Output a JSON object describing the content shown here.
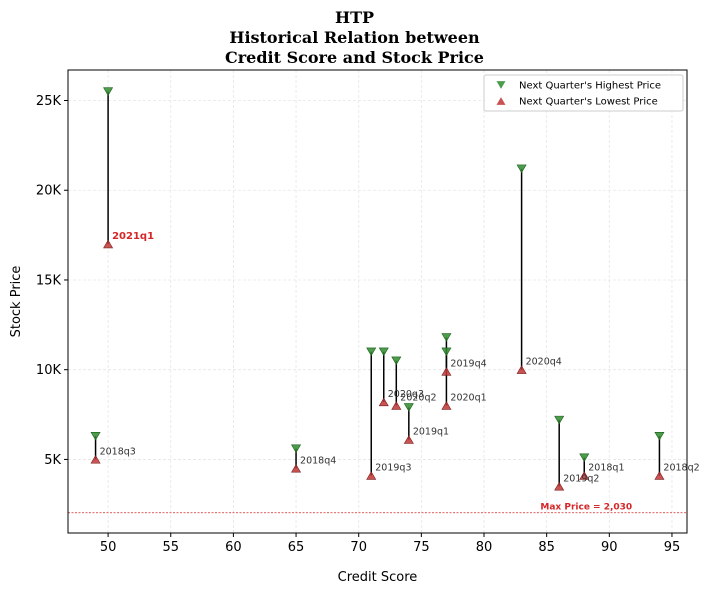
{
  "chart_data": {
    "type": "scatter",
    "title_lines": [
      "HTP",
      "Historical Relation between",
      "Credit Score and Stock Price"
    ],
    "xlabel": "Credit Score",
    "ylabel": "Stock Price",
    "xlim": [
      46.8,
      96.2
    ],
    "ylim": [
      900,
      26700
    ],
    "x_ticks": [
      50,
      55,
      60,
      65,
      70,
      75,
      80,
      85,
      90,
      95
    ],
    "y_ticks": [
      {
        "value": 5000,
        "label": "5K"
      },
      {
        "value": 10000,
        "label": "10K"
      },
      {
        "value": 15000,
        "label": "15K"
      },
      {
        "value": 20000,
        "label": "20K"
      },
      {
        "value": 25000,
        "label": "25K"
      }
    ],
    "grid": true,
    "legend_position": "top-right",
    "legend": [
      {
        "label": "Next Quarter's Highest Price",
        "marker": "triangle-down",
        "color": "#2e8b2e"
      },
      {
        "label": "Next Quarter's Lowest Price",
        "marker": "triangle-up",
        "color": "#c03535"
      }
    ],
    "colors": {
      "high": "#2e8b2e",
      "low": "#c03535",
      "highlight_label": "#d62728",
      "ref_line": "#d62728"
    },
    "series": [
      {
        "name": "Next Quarter's Highest Price",
        "points": [
          {
            "x": 50,
            "y": 25500
          },
          {
            "x": 49,
            "y": 6300
          },
          {
            "x": 65,
            "y": 5600
          },
          {
            "x": 71,
            "y": 11000
          },
          {
            "x": 72,
            "y": 11000
          },
          {
            "x": 73,
            "y": 10500
          },
          {
            "x": 74,
            "y": 7900
          },
          {
            "x": 77,
            "y": 11800
          },
          {
            "x": 77,
            "y": 11000
          },
          {
            "x": 83,
            "y": 21200
          },
          {
            "x": 86,
            "y": 7200
          },
          {
            "x": 88,
            "y": 5100
          },
          {
            "x": 94,
            "y": 6300
          }
        ]
      },
      {
        "name": "Next Quarter's Lowest Price",
        "points": [
          {
            "x": 50,
            "y": 17000
          },
          {
            "x": 49,
            "y": 5000
          },
          {
            "x": 65,
            "y": 4500
          },
          {
            "x": 71,
            "y": 4100
          },
          {
            "x": 72,
            "y": 8200
          },
          {
            "x": 73,
            "y": 8000
          },
          {
            "x": 74,
            "y": 6100
          },
          {
            "x": 77,
            "y": 9900
          },
          {
            "x": 77,
            "y": 8000
          },
          {
            "x": 83,
            "y": 10000
          },
          {
            "x": 86,
            "y": 3500
          },
          {
            "x": 88,
            "y": 4100
          },
          {
            "x": 94,
            "y": 4100
          }
        ]
      }
    ],
    "ranges": [
      {
        "x": 50,
        "high": 25500,
        "low": 17000,
        "label": "2021q1",
        "highlight": true
      },
      {
        "x": 49,
        "high": 6300,
        "low": 5000,
        "label": "2018q3"
      },
      {
        "x": 65,
        "high": 5600,
        "low": 4500,
        "label": "2018q4"
      },
      {
        "x": 71,
        "high": 11000,
        "low": 4100,
        "label": "2019q3"
      },
      {
        "x": 72,
        "high": 11000,
        "low": 8200,
        "label": "2020q3"
      },
      {
        "x": 73,
        "high": 10500,
        "low": 8000,
        "label": "2020q2"
      },
      {
        "x": 74,
        "high": 7900,
        "low": 6100,
        "label": "2019q1"
      },
      {
        "x": 77,
        "high": 11800,
        "low": 9900,
        "label": "2019q4"
      },
      {
        "x": 77,
        "high": 11000,
        "low": 8000,
        "label": "2020q1"
      },
      {
        "x": 83,
        "high": 21200,
        "low": 10000,
        "label": "2020q4"
      },
      {
        "x": 86,
        "high": 7200,
        "low": 3500,
        "label": "2019q2"
      },
      {
        "x": 88,
        "high": 5100,
        "low": 4100,
        "label": "2018q1"
      },
      {
        "x": 94,
        "high": 6300,
        "low": 4100,
        "label": "2018q2"
      }
    ],
    "reference_line": {
      "y": 2030,
      "label": "Max Price = 2,030",
      "label_x": 84.5
    }
  }
}
